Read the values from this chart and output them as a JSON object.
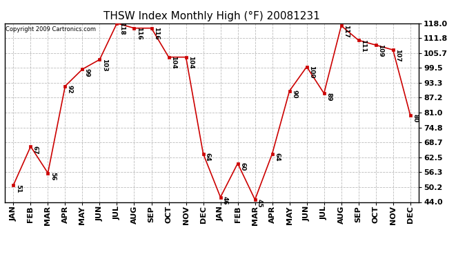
{
  "title": "THSW Index Monthly High (°F) 20081231",
  "copyright": "Copyright 2009 Cartronics.com",
  "x_labels": [
    "JAN",
    "FEB",
    "MAR",
    "APR",
    "MAY",
    "JUN",
    "JUL",
    "AUG",
    "SEP",
    "OCT",
    "NOV",
    "DEC",
    "JAN",
    "FEB",
    "MAR",
    "APR",
    "MAY",
    "JUN",
    "JUL",
    "AUG",
    "SEP",
    "OCT",
    "NOV",
    "DEC"
  ],
  "values": [
    51,
    67,
    56,
    92,
    99,
    103,
    118,
    116,
    116,
    104,
    104,
    64,
    46,
    60,
    45,
    64,
    90,
    100,
    89,
    117,
    111,
    109,
    107,
    80
  ],
  "data_labels": [
    "51",
    "67",
    "56",
    "92",
    "99",
    "103",
    "118",
    "116",
    "116",
    "104",
    "104",
    "64",
    "46",
    "60",
    "45",
    "64",
    "90",
    "100",
    "89",
    "117",
    "111",
    "109",
    "107",
    "80"
  ],
  "line_color": "#cc0000",
  "marker_color": "#cc0000",
  "bg_color": "#ffffff",
  "grid_color": "#bbbbbb",
  "ylim": [
    44.0,
    118.0
  ],
  "yticks": [
    44.0,
    50.2,
    56.3,
    62.5,
    68.7,
    74.8,
    81.0,
    87.2,
    93.3,
    99.5,
    105.7,
    111.8,
    118.0
  ],
  "title_fontsize": 11,
  "label_fontsize": 6.5,
  "copyright_fontsize": 6,
  "tick_fontsize": 8,
  "figwidth": 6.9,
  "figheight": 3.75,
  "dpi": 100
}
